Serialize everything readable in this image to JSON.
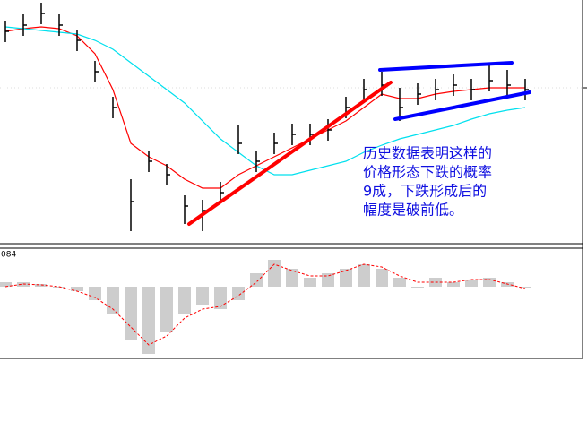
{
  "chart_data": [
    {
      "type": "ohlc",
      "x": [
        0,
        1,
        2,
        3,
        4,
        5,
        6,
        7,
        8,
        9,
        10,
        11,
        12,
        13,
        14,
        15,
        16,
        17,
        18,
        19,
        20,
        21,
        22,
        23,
        24,
        25,
        26,
        27,
        28,
        29
      ],
      "xlim": [
        0,
        29.5
      ],
      "ylim": [
        0,
        270
      ],
      "series": [
        {
          "color": "#000000",
          "values": [
            235,
            242,
            255,
            242,
            225,
            190,
            150,
            45,
            90,
            75,
            40,
            35,
            55,
            110,
            90,
            110,
            120,
            120,
            125,
            150,
            170,
            175,
            150,
            165,
            170,
            175,
            170,
            180,
            175,
            170
          ],
          "high": [
            247,
            254,
            267,
            254,
            237,
            202,
            162,
            70,
            102,
            87,
            52,
            47,
            67,
            130,
            102,
            122,
            132,
            132,
            137,
            162,
            182,
            190,
            172,
            177,
            182,
            187,
            182,
            198,
            192,
            182
          ],
          "low": [
            223,
            230,
            243,
            230,
            213,
            178,
            138,
            12,
            78,
            63,
            20,
            12,
            43,
            98,
            78,
            98,
            108,
            108,
            113,
            138,
            158,
            163,
            135,
            153,
            158,
            163,
            158,
            168,
            163,
            158
          ]
        },
        {
          "color": "#ff0000",
          "values": [
            235,
            238,
            240,
            238,
            230,
            210,
            170,
            110,
            95,
            85,
            70,
            60,
            60,
            75,
            85,
            95,
            105,
            115,
            125,
            135,
            150,
            165,
            160,
            160,
            165,
            168,
            170,
            172,
            172,
            172
          ]
        },
        {
          "color": "#00e0ee",
          "values": [
            240,
            238,
            236,
            234,
            232,
            225,
            215,
            200,
            185,
            170,
            155,
            135,
            115,
            100,
            85,
            75,
            75,
            80,
            85,
            90,
            100,
            108,
            115,
            120,
            125,
            130,
            137,
            143,
            147,
            150
          ]
        }
      ],
      "trendlines": [
        {
          "color": "#ff0000",
          "x": [
            10.25,
            21.5
          ],
          "values": [
            20,
            178
          ]
        },
        {
          "color": "#0000ff",
          "x": [
            20.9,
            28.25
          ],
          "values": [
            192,
            200
          ]
        },
        {
          "color": "#0000ff",
          "x": [
            21.75,
            29.25
          ],
          "values": [
            137,
            167
          ]
        }
      ],
      "annotation": [
        "历史数据表明这样的",
        "价格形态下跌的概率",
        "9成，下跌形成后的",
        "幅度是破前低。"
      ]
    },
    {
      "type": "histogram",
      "label": "084",
      "xlim": [
        0,
        29.5
      ],
      "ylim": [
        -80,
        40
      ],
      "series": [
        {
          "color": "#c0c0c0",
          "values": [
            5,
            5,
            3,
            0,
            -5,
            -15,
            -30,
            -60,
            -75,
            -50,
            -30,
            -20,
            -25,
            -15,
            15,
            30,
            20,
            10,
            15,
            20,
            25,
            20,
            10,
            0,
            10,
            5,
            8,
            10,
            5,
            0
          ]
        },
        {
          "color": "#ff0000",
          "values": [
            0,
            3,
            2,
            0,
            -5,
            -12,
            -25,
            -45,
            -65,
            -55,
            -35,
            -25,
            -22,
            -10,
            5,
            25,
            18,
            12,
            12,
            18,
            25,
            22,
            12,
            5,
            5,
            5,
            8,
            8,
            3,
            -2
          ]
        }
      ]
    }
  ]
}
